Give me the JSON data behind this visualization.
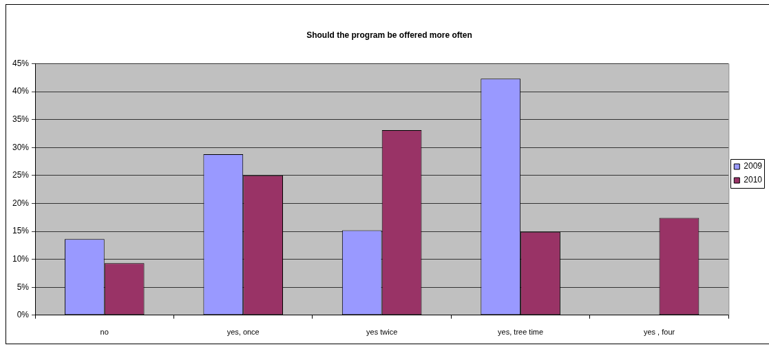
{
  "chart_data": {
    "type": "bar",
    "title": "Should the program be offered more often",
    "categories": [
      "no",
      "yes, once",
      "yes twice",
      "yes, tree time",
      "yes , four"
    ],
    "series": [
      {
        "name": "2009",
        "color": "#9999ff",
        "values": [
          13.6,
          28.8,
          15.2,
          42.3,
          null
        ]
      },
      {
        "name": "2010",
        "color": "#993366",
        "values": [
          9.3,
          25.0,
          33.1,
          14.9,
          17.4
        ]
      }
    ],
    "ylim": [
      0,
      45
    ],
    "yticks": [
      {
        "value": 0,
        "label": "0%"
      },
      {
        "value": 5,
        "label": "5%"
      },
      {
        "value": 10,
        "label": "10%"
      },
      {
        "value": 15,
        "label": "15%"
      },
      {
        "value": 20,
        "label": "20%"
      },
      {
        "value": 25,
        "label": "25%"
      },
      {
        "value": 30,
        "label": "30%"
      },
      {
        "value": 35,
        "label": "35%"
      },
      {
        "value": 40,
        "label": "40%"
      },
      {
        "value": 45,
        "label": "45%"
      }
    ],
    "grid": "y",
    "legend": "right"
  }
}
